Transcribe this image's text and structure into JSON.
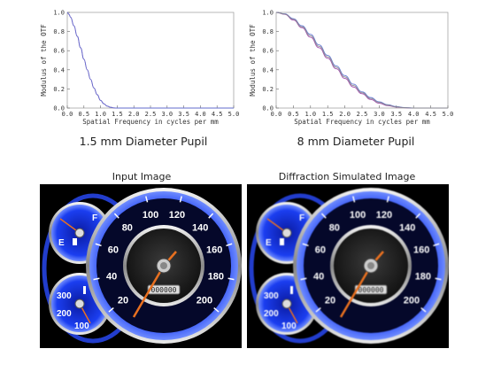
{
  "chart_data": [
    {
      "type": "line",
      "caption": "1.5 mm Diameter Pupil",
      "xlabel": "Spatial Frequency in cycles per mm",
      "ylabel": "Modulus of the OTF",
      "xlim": [
        0,
        5
      ],
      "ylim": [
        0,
        1
      ],
      "xticks": [
        "0.0",
        "0.5",
        "1.0",
        "1.5",
        "2.0",
        "2.5",
        "3.0",
        "3.5",
        "4.0",
        "4.5",
        "5.0"
      ],
      "yticks": [
        "0.0",
        "0.2",
        "0.4",
        "0.6",
        "0.8",
        "1.0"
      ],
      "series": [
        {
          "color": "#9b3fa8",
          "x": [
            0,
            0.05,
            0.1,
            0.2,
            0.3,
            0.4,
            0.5,
            0.6,
            0.7,
            0.8,
            0.9,
            1.0,
            1.1,
            1.2,
            1.3,
            1.4,
            1.5,
            2.0,
            3.0,
            4.0,
            5.0
          ],
          "y": [
            1.0,
            0.98,
            0.95,
            0.86,
            0.75,
            0.63,
            0.51,
            0.4,
            0.3,
            0.21,
            0.14,
            0.08,
            0.045,
            0.02,
            0.008,
            0.002,
            0,
            0,
            0,
            0,
            0
          ]
        },
        {
          "color": "#5a6fd0",
          "x": [
            0,
            0.05,
            0.1,
            0.2,
            0.3,
            0.4,
            0.5,
            0.6,
            0.7,
            0.8,
            0.9,
            1.0,
            1.1,
            1.2,
            1.3,
            1.4,
            1.5,
            2.0,
            3.0,
            4.0,
            5.0
          ],
          "y": [
            1.0,
            0.98,
            0.95,
            0.86,
            0.75,
            0.63,
            0.51,
            0.4,
            0.3,
            0.21,
            0.14,
            0.08,
            0.045,
            0.02,
            0.008,
            0.002,
            0,
            0,
            0,
            0,
            0
          ]
        }
      ]
    },
    {
      "type": "line",
      "caption": "8 mm Diameter Pupil",
      "xlabel": "Spatial Frequency in cycles per mm",
      "ylabel": "Modulus of the OTF",
      "xlim": [
        0,
        5
      ],
      "ylim": [
        0,
        1
      ],
      "xticks": [
        "0.0",
        "0.5",
        "1.0",
        "1.5",
        "2.0",
        "2.5",
        "3.0",
        "3.5",
        "4.0",
        "4.5",
        "5.0"
      ],
      "yticks": [
        "0.0",
        "0.2",
        "0.4",
        "0.6",
        "0.8",
        "1.0"
      ],
      "series": [
        {
          "color": "#9b3fa8",
          "x": [
            0,
            0.25,
            0.5,
            0.75,
            1.0,
            1.25,
            1.5,
            1.75,
            2.0,
            2.25,
            2.5,
            2.75,
            3.0,
            3.25,
            3.5,
            3.75,
            4.0,
            4.5,
            5.0
          ],
          "y": [
            1.0,
            0.98,
            0.92,
            0.84,
            0.74,
            0.63,
            0.52,
            0.41,
            0.31,
            0.22,
            0.15,
            0.09,
            0.05,
            0.025,
            0.01,
            0.003,
            0,
            0,
            0
          ]
        },
        {
          "color": "#5a6fd0",
          "x": [
            0,
            0.25,
            0.5,
            0.75,
            1.0,
            1.25,
            1.5,
            1.75,
            2.0,
            2.25,
            2.5,
            2.75,
            3.0,
            3.25,
            3.5,
            3.75,
            4.0,
            4.5,
            5.0
          ],
          "y": [
            1.0,
            0.985,
            0.935,
            0.86,
            0.77,
            0.66,
            0.55,
            0.44,
            0.34,
            0.25,
            0.17,
            0.11,
            0.065,
            0.035,
            0.015,
            0.005,
            0.001,
            0,
            0
          ]
        },
        {
          "color": "#888888",
          "x": [
            0,
            0.25,
            0.5,
            0.75,
            1.0,
            1.25,
            1.5,
            1.75,
            2.0,
            2.25,
            2.5,
            2.75,
            3.0,
            3.25,
            3.5,
            3.75,
            4.0,
            4.5,
            5.0
          ],
          "y": [
            1.0,
            0.982,
            0.928,
            0.85,
            0.755,
            0.645,
            0.535,
            0.425,
            0.325,
            0.235,
            0.16,
            0.1,
            0.058,
            0.03,
            0.012,
            0.004,
            0,
            0,
            0
          ]
        }
      ]
    }
  ],
  "images": [
    {
      "title": "Input Image",
      "fuel_gauge": {
        "full": "F",
        "empty": "E",
        "color": "#1a3fd8"
      },
      "temp_gauge": {
        "high": "300",
        "mid": "200",
        "low": "100"
      },
      "speedometer": {
        "labels": [
          "20",
          "40",
          "60",
          "80",
          "100",
          "120",
          "140",
          "160",
          "180",
          "200"
        ],
        "odometer": "000000"
      }
    },
    {
      "title": "Diffraction Simulated Image",
      "fuel_gauge": {
        "full": "F",
        "empty": "E",
        "color": "#1a3fd8"
      },
      "temp_gauge": {
        "high": "300",
        "mid": "200",
        "low": "100"
      },
      "speedometer": {
        "labels": [
          "20",
          "40",
          "60",
          "80",
          "100",
          "120",
          "140",
          "160",
          "180",
          "200"
        ],
        "odometer": "000000"
      }
    }
  ]
}
